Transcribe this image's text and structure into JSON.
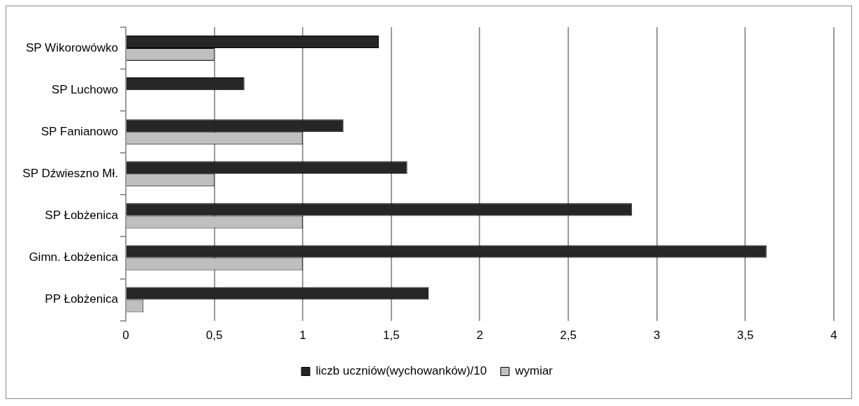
{
  "chart_data": {
    "type": "bar",
    "orientation": "horizontal",
    "categories": [
      "SP Wikorowówko",
      "SP Luchowo",
      "SP Fanianowo",
      "SP Dźwieszno Mł.",
      "SP Łobżenica",
      "Gimn. Łobżenica",
      "PP Łobżenica"
    ],
    "series": [
      {
        "name": "liczb uczniów(wychowanków)/10",
        "color": "#262626",
        "values": [
          1.43,
          0.67,
          1.23,
          1.59,
          2.86,
          3.62,
          1.71
        ]
      },
      {
        "name": "wymiar",
        "color": "#bfbfbf",
        "values": [
          0.5,
          0,
          1,
          0.5,
          1,
          1,
          0.1
        ]
      }
    ],
    "xlim": [
      0,
      4
    ],
    "xticks": [
      0,
      {
        "value": 0.5,
        "label": "0,5"
      },
      1,
      {
        "value": 1.5,
        "label": "1,5"
      },
      2,
      {
        "value": 2.5,
        "label": "2,5"
      },
      3,
      {
        "value": 3.5,
        "label": "3,5"
      },
      4
    ],
    "grid": "x",
    "legend": "bottom"
  }
}
